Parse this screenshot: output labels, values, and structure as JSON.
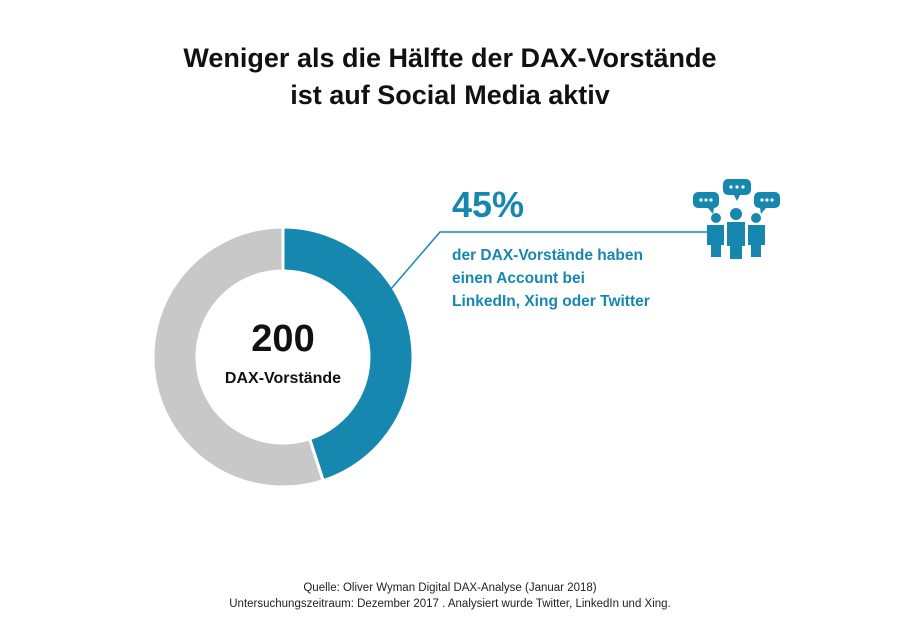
{
  "title": {
    "line1": "Weniger als die Hälfte der DAX-Vorstände",
    "line2": "ist auf Social Media aktiv"
  },
  "colors": {
    "accent": "#1688b0",
    "rest": "#c8c8c8",
    "text": "#111111"
  },
  "chart_data": {
    "type": "pie",
    "style": "donut",
    "slices": [
      {
        "value": 45,
        "color": "#1688b0"
      },
      {
        "value": 55,
        "color": "#c8c8c8"
      }
    ],
    "center_value": "200",
    "center_label": "DAX-Vorstände",
    "callout": {
      "value": "45%",
      "lines": [
        "der DAX-Vorstände haben",
        "einen Account bei",
        "LinkedIn, Xing oder Twitter"
      ]
    }
  },
  "icon": "social-media-people-icon",
  "footer": {
    "source": "Quelle: Oliver Wyman Digital DAX-Analyse (Januar 2018)",
    "note": "Untersuchungszeitraum: Dezember 2017 . Analysiert wurde Twitter, LinkedIn und Xing."
  }
}
